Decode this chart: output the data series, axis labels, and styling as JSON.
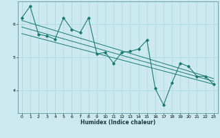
{
  "title": "",
  "xlabel": "Humidex (Indice chaleur)",
  "ylabel": "",
  "background_color": "#cce9f0",
  "grid_color": "#aad4dc",
  "line_color": "#1a7a6e",
  "xlim": [
    -0.5,
    23.5
  ],
  "ylim": [
    3.3,
    6.7
  ],
  "yticks": [
    4,
    5,
    6
  ],
  "xticks": [
    0,
    1,
    2,
    3,
    4,
    5,
    6,
    7,
    8,
    9,
    10,
    11,
    12,
    13,
    14,
    15,
    16,
    17,
    18,
    19,
    20,
    21,
    22,
    23
  ],
  "scatter_x": [
    0,
    1,
    2,
    3,
    4,
    5,
    6,
    7,
    8,
    9,
    10,
    11,
    12,
    13,
    14,
    15,
    16,
    17,
    18,
    19,
    20,
    21,
    22,
    23
  ],
  "scatter_y": [
    6.2,
    6.55,
    5.7,
    5.65,
    5.55,
    6.2,
    5.85,
    5.75,
    6.2,
    5.1,
    5.15,
    4.82,
    5.15,
    5.18,
    5.25,
    5.52,
    4.05,
    3.55,
    4.22,
    4.82,
    4.72,
    4.42,
    4.42,
    4.18
  ],
  "trend1_x": [
    0,
    23
  ],
  "trend1_y": [
    6.12,
    4.35
  ],
  "trend2_x": [
    0,
    23
  ],
  "trend2_y": [
    5.72,
    4.18
  ],
  "trend3_x": [
    0,
    23
  ],
  "trend3_y": [
    5.92,
    4.27
  ]
}
